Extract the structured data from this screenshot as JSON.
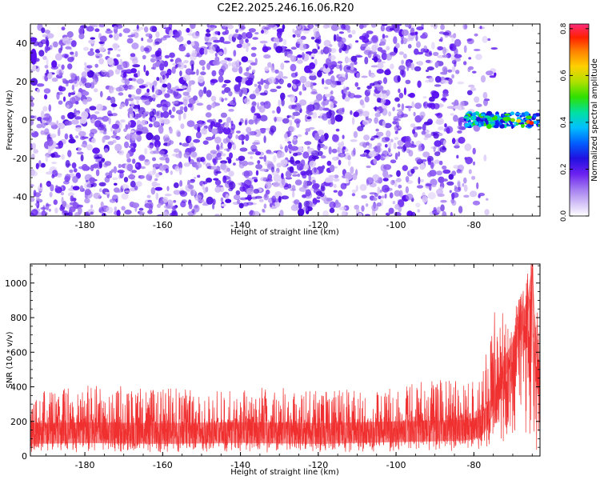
{
  "title": "C2E2.2025.246.16.06.R20",
  "colors": {
    "spectrogram_scale": [
      "#ffffff",
      "#cfb8f5",
      "#a37bf0",
      "#7c3df2",
      "#5a0ff0",
      "#2b10d0",
      "#1020ff",
      "#0080ff",
      "#00e0e0",
      "#00e080",
      "#40e000",
      "#c0e000",
      "#ffe000",
      "#ff8000",
      "#ff2000",
      "#ff2a7a"
    ],
    "snr_line": "#f03030"
  },
  "chart_data": [
    {
      "type": "heatmap",
      "xlabel": "Height of straight line (km)",
      "ylabel": "Frequency (Hz)",
      "xlim": [
        -194,
        -63
      ],
      "ylim": [
        -50,
        50
      ],
      "x_ticks": [
        "-180",
        "-160",
        "-140",
        "-120",
        "-100",
        "-80"
      ],
      "y_ticks": [
        "-40",
        "-20",
        "0",
        "20",
        "40"
      ],
      "colorbar": {
        "label": "Normalized spectral amplitude",
        "range": [
          0.0,
          0.82
        ],
        "ticks": [
          "0.0",
          "0.2",
          "0.4",
          "0.6",
          "0.8"
        ]
      },
      "description_values": {
        "noise_amplitude_range": [
          0.0,
          0.12
        ],
        "signal_band_frequency_hz": [
          -3,
          3
        ],
        "signal_band_height_km": [
          -82,
          -63
        ],
        "signal_peak_amplitude": 0.8,
        "noise_free_region_km": [
          -75,
          -63
        ]
      }
    },
    {
      "type": "line",
      "xlabel": "Height of straight line (km)",
      "ylabel": "SNR (10 * v/v)",
      "xlim": [
        -194,
        -63
      ],
      "ylim": [
        0,
        1110
      ],
      "x_ticks": [
        "-180",
        "-160",
        "-140",
        "-120",
        "-100",
        "-80"
      ],
      "y_ticks": [
        "0",
        "200",
        "400",
        "600",
        "800",
        "1000"
      ],
      "series": [
        {
          "x": [
            -194,
            -180,
            -160,
            -140,
            -120,
            -100,
            -90,
            -82,
            -78,
            -75,
            -72,
            -70,
            -68,
            -66,
            -65,
            -64,
            -63
          ],
          "y": [
            130,
            135,
            130,
            135,
            130,
            140,
            145,
            150,
            170,
            300,
            520,
            600,
            750,
            860,
            1110,
            600,
            400
          ],
          "y_band_low": [
            20,
            20,
            20,
            20,
            20,
            20,
            25,
            30,
            40,
            60,
            80,
            100,
            120,
            60,
            40,
            30,
            30
          ],
          "y_band_high": [
            360,
            420,
            390,
            400,
            390,
            390,
            460,
            420,
            440,
            830,
            850,
            900,
            890,
            940,
            1110,
            900,
            800
          ]
        }
      ]
    }
  ]
}
